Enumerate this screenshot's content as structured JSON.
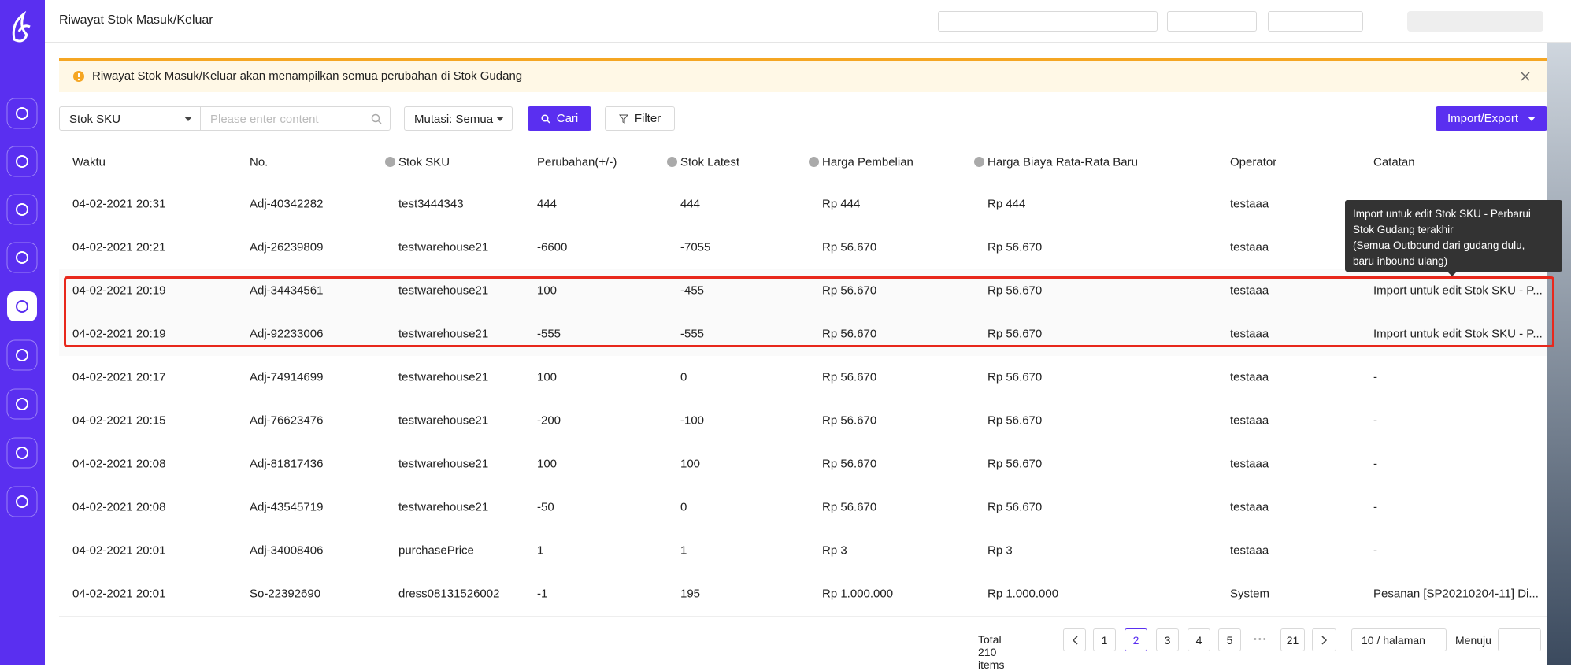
{
  "header": {
    "title": "Riwayat Stok Masuk/Keluar"
  },
  "alert": {
    "text": "Riwayat Stok Masuk/Keluar akan menampilkan semua perubahan di Stok Gudang"
  },
  "toolbar": {
    "field": "Stok SKU",
    "placeholder": "Please enter content",
    "mutasi": "Mutasi: Semua",
    "search": "Cari",
    "filter": "Filter",
    "import_export": "Import/Export"
  },
  "table": {
    "columns": [
      "Waktu",
      "No.",
      "Stok SKU",
      "Perubahan(+/-)",
      "Stok Latest",
      "Harga Pembelian",
      "Harga Biaya Rata-Rata Baru",
      "Operator",
      "Catatan"
    ],
    "rows": [
      [
        "04-02-2021 20:31",
        "Adj-40342282",
        "test3444343",
        "444",
        "444",
        "Rp 444",
        "Rp 444",
        "testaaa",
        ""
      ],
      [
        "04-02-2021 20:21",
        "Adj-26239809",
        "testwarehouse21",
        "-6600",
        "-7055",
        "Rp 56.670",
        "Rp 56.670",
        "testaaa",
        ""
      ],
      [
        "04-02-2021 20:19",
        "Adj-34434561",
        "testwarehouse21",
        "100",
        "-455",
        "Rp 56.670",
        "Rp 56.670",
        "testaaa",
        "Import untuk edit Stok SKU - P..."
      ],
      [
        "04-02-2021 20:19",
        "Adj-92233006",
        "testwarehouse21",
        "-555",
        "-555",
        "Rp 56.670",
        "Rp 56.670",
        "testaaa",
        "Import untuk edit Stok SKU - P..."
      ],
      [
        "04-02-2021 20:17",
        "Adj-74914699",
        "testwarehouse21",
        "100",
        "0",
        "Rp 56.670",
        "Rp 56.670",
        "testaaa",
        "-"
      ],
      [
        "04-02-2021 20:15",
        "Adj-76623476",
        "testwarehouse21",
        "-200",
        "-100",
        "Rp 56.670",
        "Rp 56.670",
        "testaaa",
        "-"
      ],
      [
        "04-02-2021 20:08",
        "Adj-81817436",
        "testwarehouse21",
        "100",
        "100",
        "Rp 56.670",
        "Rp 56.670",
        "testaaa",
        "-"
      ],
      [
        "04-02-2021 20:08",
        "Adj-43545719",
        "testwarehouse21",
        "-50",
        "0",
        "Rp 56.670",
        "Rp 56.670",
        "testaaa",
        "-"
      ],
      [
        "04-02-2021 20:01",
        "Adj-34008406",
        "purchasePrice",
        "1",
        "1",
        "Rp 3",
        "Rp 3",
        "testaaa",
        "-"
      ],
      [
        "04-02-2021 20:01",
        "So-22392690",
        "dress08131526002",
        "-1",
        "195",
        "Rp 1.000.000",
        "Rp 1.000.000",
        "System",
        "Pesanan [SP20210204-11] Di..."
      ]
    ]
  },
  "tooltip": {
    "lines": [
      "Import untuk edit Stok SKU - Perbarui",
      "Stok Gudang terakhir",
      "(Semua Outbound dari gudang dulu,",
      "baru inbound ulang)"
    ]
  },
  "pagination": {
    "total": "Total 210 items",
    "pages": [
      "1",
      "2",
      "3",
      "4",
      "5",
      "21"
    ],
    "ellipsis": "•••",
    "page_size": "10 / halaman",
    "goto": "Menuju"
  }
}
